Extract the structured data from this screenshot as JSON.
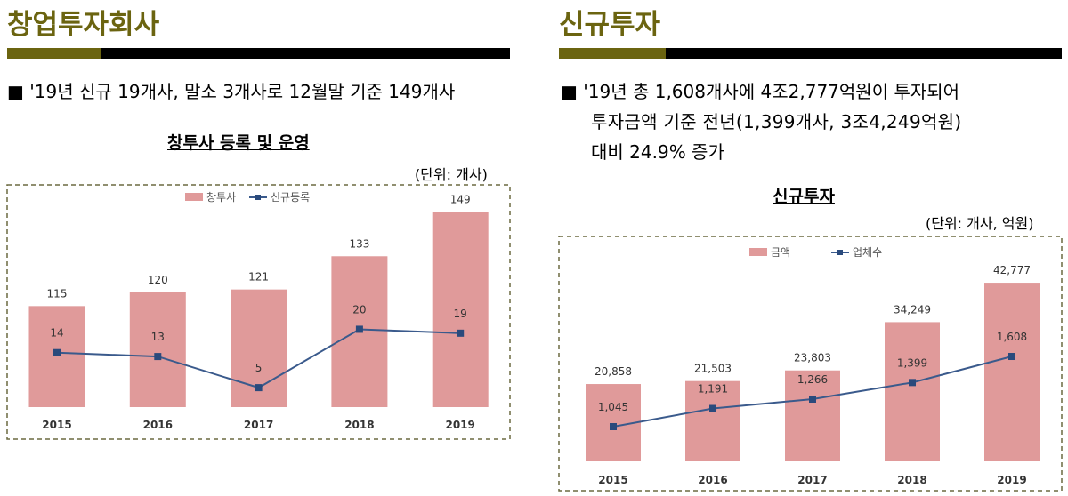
{
  "left": {
    "title": "창업투자회사",
    "bullet": "■ '19년 신규 19개사, 말소 3개사로 12월말 기준 149개사",
    "chart_title": "창투사 등록 및 운영",
    "unit": "(단위: 개사)"
  },
  "right": {
    "title": "신규투자",
    "bullet_lines": [
      "■ '19년 총 1,608개사에 4조2,777억원이 투자되어",
      "투자금액 기준 전년(1,399개사, 3조4,249억원)",
      "대비 24.9% 증가"
    ],
    "chart_title": "신규투자",
    "unit": "(단위: 개사, 억원)"
  },
  "colors": {
    "title": "#6b6410",
    "accent_bar": "#6b6410",
    "bar": "#e09a9a",
    "line": "#3a5a8c",
    "marker": "#2a4a7c"
  },
  "chart_data": [
    {
      "type": "bar+line",
      "categories": [
        "2015",
        "2016",
        "2017",
        "2018",
        "2019"
      ],
      "series": [
        {
          "name": "창투사",
          "type": "bar",
          "values": [
            115,
            120,
            121,
            133,
            149
          ],
          "labels": [
            "115",
            "120",
            "121",
            "133",
            "149"
          ]
        },
        {
          "name": "신규등록",
          "type": "line",
          "values": [
            14,
            13,
            5,
            20,
            19
          ],
          "labels": [
            "14",
            "13",
            "5",
            "20",
            "19"
          ]
        }
      ],
      "bar_ylim": [
        78.5,
        153
      ],
      "line_ylim": [
        0,
        53
      ],
      "legend": "top",
      "grid": false
    },
    {
      "type": "bar+line",
      "categories": [
        "2015",
        "2016",
        "2017",
        "2018",
        "2019"
      ],
      "series": [
        {
          "name": "금액",
          "type": "bar",
          "values": [
            20858,
            21503,
            23803,
            34249,
            42777
          ],
          "labels": [
            "20,858",
            "21,503",
            "23,803",
            "34,249",
            "42,777"
          ]
        },
        {
          "name": "업체수",
          "type": "line",
          "values": [
            1045,
            1191,
            1266,
            1399,
            1608
          ],
          "labels": [
            "1,045",
            "1,191",
            "1,266",
            "1,399",
            "1,608"
          ]
        }
      ],
      "bar_ylim": [
        4135,
        46250
      ],
      "line_ylim": [
        767,
        2328
      ],
      "legend": "top",
      "grid": false
    }
  ]
}
